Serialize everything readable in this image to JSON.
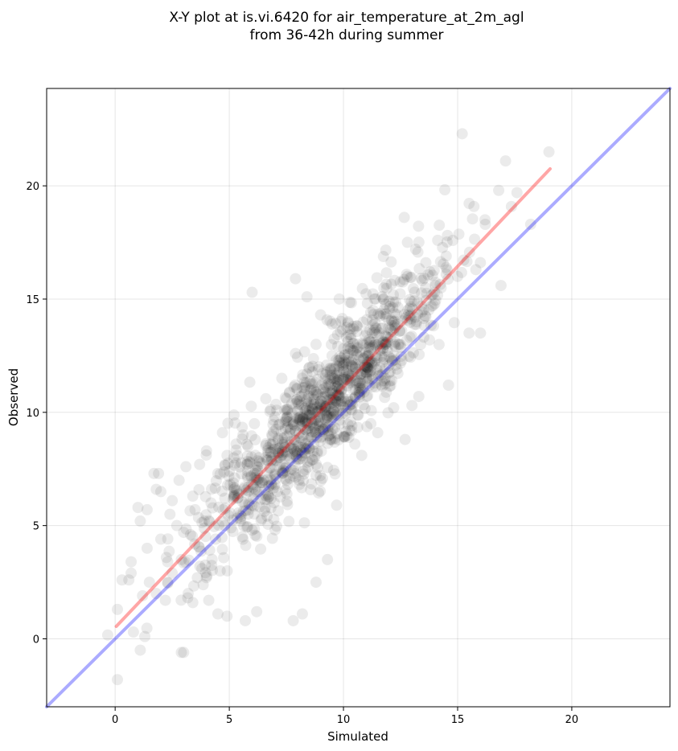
{
  "chart_data": {
    "type": "scatter",
    "title": "X-Y plot at is.vi.6420 for air_temperature_at_2m_agl",
    "subtitle": "from 36-42h during summer",
    "xlabel": "Simulated",
    "ylabel": "Observed",
    "xlim": [
      -3.0,
      24.3
    ],
    "ylim": [
      -3.0,
      24.3
    ],
    "x_ticks": [
      "0",
      "5",
      "10",
      "15",
      "20"
    ],
    "y_ticks": [
      "0",
      "5",
      "10",
      "15",
      "20"
    ],
    "grid": true,
    "point_color": "#000000",
    "point_alpha": 0.08,
    "identity_line": {
      "x": [
        -3.0,
        24.3
      ],
      "y": [
        -3.0,
        24.3
      ],
      "color": "#0000ff"
    },
    "fit_line": {
      "x": [
        0.05,
        19.05
      ],
      "y": [
        0.55,
        20.75
      ],
      "color": "#ff0000"
    },
    "points": {
      "x": [
        0.1,
        0.1,
        0.3,
        0.6,
        0.7,
        0.7,
        0.8,
        1.0,
        1.1,
        1.1,
        1.2,
        1.3,
        1.4,
        1.4,
        1.5,
        1.7,
        1.8,
        1.8,
        1.9,
        2.0,
        2.0,
        2.2,
        2.3,
        2.4,
        2.5,
        2.5,
        2.7,
        2.8,
        2.9,
        3.0,
        3.1,
        3.2,
        3.3,
        3.4,
        3.4,
        3.5,
        3.6,
        3.7,
        3.8,
        3.9,
        4.0,
        4.1,
        4.2,
        4.4,
        4.5,
        4.6,
        4.7,
        4.8,
        4.9,
        5.0,
        5.2,
        5.3,
        5.5,
        5.6,
        5.8,
        6.0,
        6.1,
        6.3,
        6.5,
        6.6,
        6.8,
        7.0,
        7.1,
        7.3,
        7.5,
        7.7,
        7.9,
        8.0,
        8.2,
        8.3,
        8.6,
        8.8,
        9.0,
        9.2,
        9.5,
        9.8,
        10.0,
        10.3,
        10.6,
        11.0,
        11.3,
        11.7,
        12.0,
        12.4,
        12.8,
        13.2,
        13.6,
        14.0,
        14.5,
        15.0,
        15.2,
        15.8,
        16.2,
        16.8,
        17.1,
        17.6,
        18.2,
        19.0,
        3.0,
        2.9,
        4.5,
        4.9,
        5.7,
        6.2,
        7.8,
        8.2,
        8.8,
        9.3,
        9.7,
        10.5,
        11.2,
        12.7,
        13.0,
        15.5,
        16.0,
        16.9,
        6.0,
        7.9,
        8.4,
        9.0,
        9.5,
        10.2,
        10.8,
        11.5,
        12.2,
        13.3,
        14.6
      ],
      "y": [
        1.3,
        -1.8,
        2.6,
        2.6,
        3.4,
        2.9,
        0.3,
        5.8,
        5.2,
        -0.5,
        1.9,
        0.1,
        4.0,
        5.7,
        2.5,
        7.3,
        2.0,
        6.6,
        7.3,
        4.4,
        6.5,
        1.7,
        3.4,
        5.5,
        2.9,
        6.1,
        5.0,
        7.0,
        3.5,
        4.7,
        7.6,
        2.0,
        4.6,
        1.6,
        6.3,
        5.7,
        2.7,
        7.7,
        3.1,
        5.2,
        8.3,
        1.7,
        6.0,
        4.4,
        7.3,
        3.0,
        9.1,
        5.0,
        8.1,
        7.4,
        6.3,
        8.6,
        5.2,
        9.0,
        7.4,
        4.8,
        9.5,
        8.0,
        7.0,
        10.6,
        8.6,
        9.8,
        6.5,
        11.5,
        10.6,
        8.4,
        12.6,
        10.1,
        9.6,
        11.1,
        10.3,
        13.0,
        11.0,
        10.0,
        12.5,
        10.7,
        12.1,
        11.5,
        13.8,
        12.0,
        14.5,
        12.2,
        14.9,
        13.0,
        16.0,
        14.0,
        15.5,
        14.8,
        16.9,
        16.0,
        22.3,
        16.3,
        18.5,
        19.8,
        21.1,
        19.7,
        18.3,
        21.5,
        -0.6,
        -0.6,
        1.1,
        1.0,
        0.8,
        1.2,
        0.8,
        1.1,
        2.5,
        3.5,
        5.9,
        8.6,
        9.5,
        8.8,
        10.3,
        13.5,
        13.5,
        15.6,
        15.3,
        15.9,
        15.1,
        14.3,
        13.9,
        14.0,
        8.1,
        9.1,
        10.2,
        10.7,
        11.2
      ]
    }
  }
}
